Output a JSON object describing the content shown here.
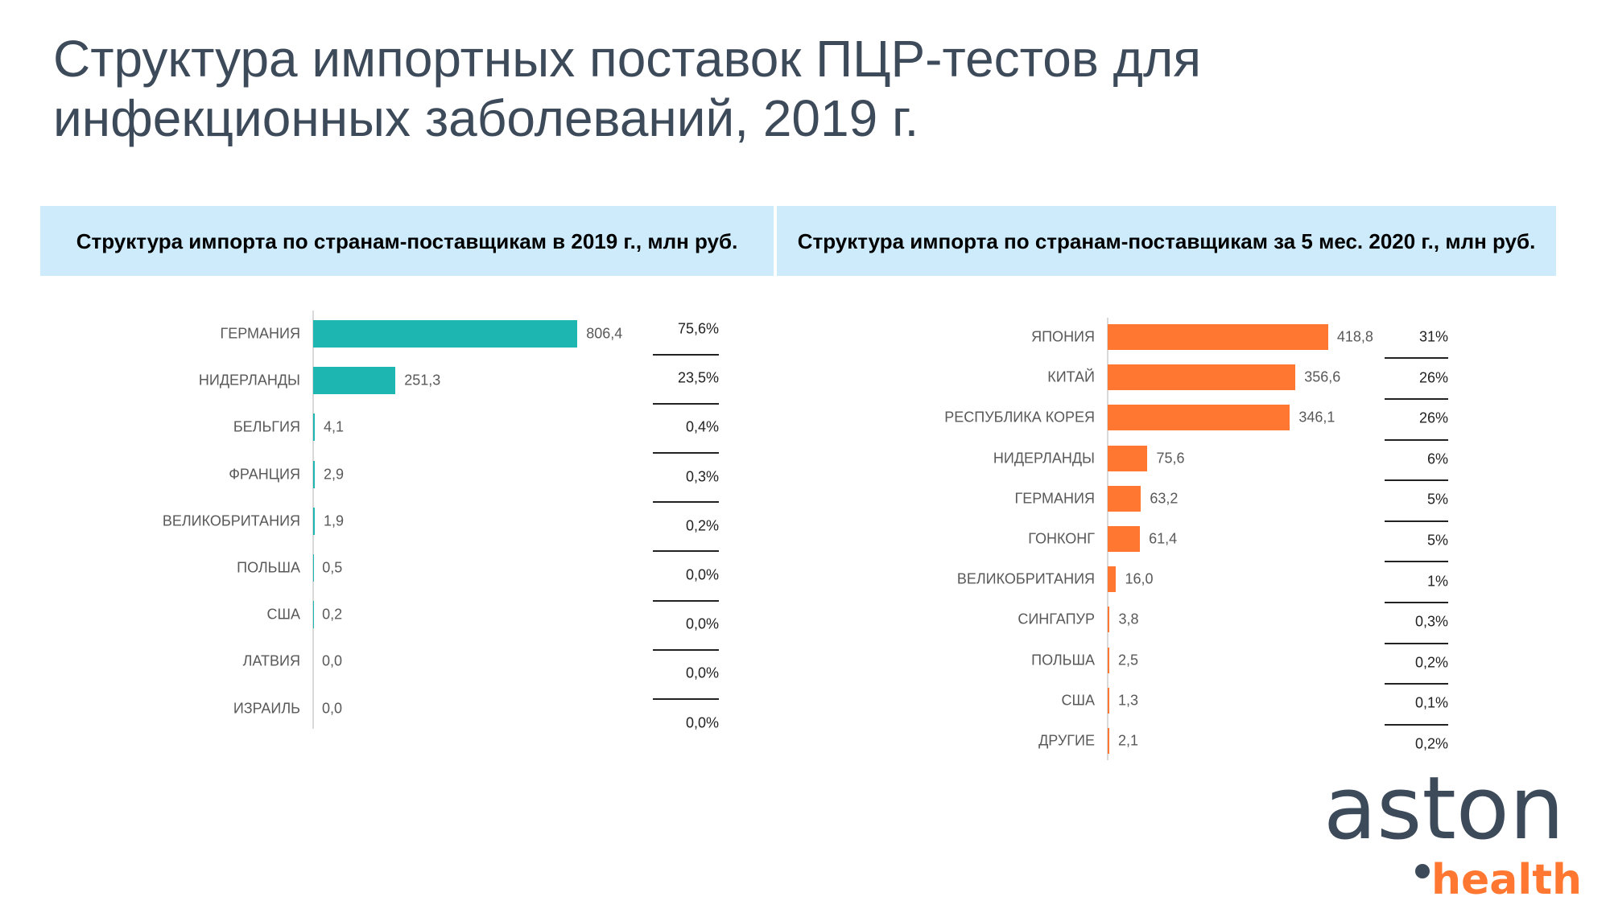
{
  "title": "Структура импортных поставок ПЦР-тестов для инфекционных заболеваний, 2019 г.",
  "logo": {
    "text1": "aston",
    "text2": "health"
  },
  "colors": {
    "teal": "#1eb6b0",
    "orange": "#ff7730",
    "header_bg": "#cdebfb",
    "title": "#3d4a5a"
  },
  "chart_data": [
    {
      "type": "bar",
      "title": "Структура импорта по странам-поставщикам в 2019 г., млн руб.",
      "categories": [
        "ГЕРМАНИЯ",
        "НИДЕРЛАНДЫ",
        "БЕЛЬГИЯ",
        "ФРАНЦИЯ",
        "ВЕЛИКОБРИТАНИЯ",
        "ПОЛЬША",
        "США",
        "ЛАТВИЯ",
        "ИЗРАИЛЬ"
      ],
      "values": [
        806.4,
        251.3,
        4.1,
        2.9,
        1.9,
        0.5,
        0.2,
        0.0,
        0.0
      ],
      "value_labels": [
        "806,4",
        "251,3",
        "4,1",
        "2,9",
        "1,9",
        "0,5",
        "0,2",
        "0,0",
        "0,0"
      ],
      "shares": [
        "75,6%",
        "23,5%",
        "0,4%",
        "0,3%",
        "0,2%",
        "0,0%",
        "0,0%",
        "0,0%",
        "0,0%"
      ],
      "orientation": "horizontal",
      "color": "#1eb6b0"
    },
    {
      "type": "bar",
      "title": "Структура импорта по странам-поставщикам за 5 мес. 2020 г., млн руб.",
      "categories": [
        "ЯПОНИЯ",
        "КИТАЙ",
        "РЕСПУБЛИКА КОРЕЯ",
        "НИДЕРЛАНДЫ",
        "ГЕРМАНИЯ",
        "ГОНКОНГ",
        "ВЕЛИКОБРИТАНИЯ",
        "СИНГАПУР",
        "ПОЛЬША",
        "США",
        "ДРУГИЕ"
      ],
      "values": [
        418.8,
        356.6,
        346.1,
        75.6,
        63.2,
        61.4,
        16.0,
        3.8,
        2.5,
        1.3,
        2.1
      ],
      "value_labels": [
        "418,8",
        "356,6",
        "346,1",
        "75,6",
        "63,2",
        "61,4",
        "16,0",
        "3,8",
        "2,5",
        "1,3",
        "2,1"
      ],
      "shares": [
        "31%",
        "26%",
        "26%",
        "6%",
        "5%",
        "5%",
        "1%",
        "0,3%",
        "0,2%",
        "0,1%",
        "0,2%"
      ],
      "orientation": "horizontal",
      "color": "#ff7730"
    }
  ]
}
